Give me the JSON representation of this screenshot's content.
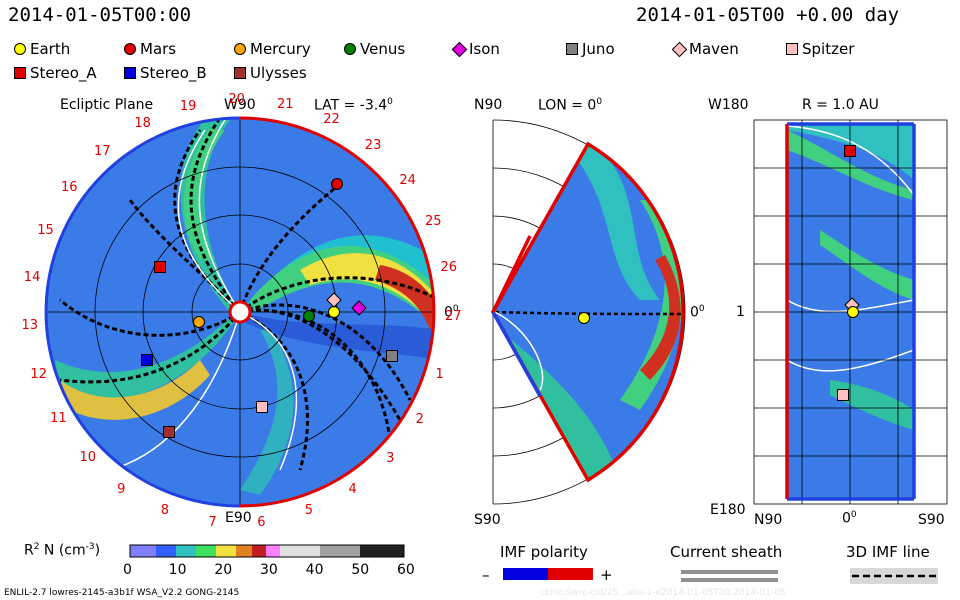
{
  "header": {
    "left_time": "2014-01-05T00:00",
    "right_time": "2014-01-05T00 +0.00 day"
  },
  "legend": [
    {
      "name": "Earth",
      "color": "#ffff00",
      "shape": "circle"
    },
    {
      "name": "Mars",
      "color": "#e00000",
      "shape": "circle"
    },
    {
      "name": "Mercury",
      "color": "#ffa500",
      "shape": "circle"
    },
    {
      "name": "Venus",
      "color": "#008000",
      "shape": "circle"
    },
    {
      "name": "Ison",
      "color": "#e000e0",
      "shape": "diamond"
    },
    {
      "name": "Juno",
      "color": "#808080",
      "shape": "square"
    },
    {
      "name": "Maven",
      "color": "#ffc0c0",
      "shape": "diamond"
    },
    {
      "name": "Spitzer",
      "color": "#ffc0c0",
      "shape": "square"
    },
    {
      "name": "Stereo_A",
      "color": "#e00000",
      "shape": "square"
    },
    {
      "name": "Stereo_B",
      "color": "#0000e0",
      "shape": "square"
    },
    {
      "name": "Ulysses",
      "color": "#a03030",
      "shape": "square"
    }
  ],
  "panel1": {
    "title": "Ecliptic Plane",
    "w90": "W90",
    "lat": "LAT = -3.4",
    "lat_deg": "0",
    "zero": "0",
    "zero_deg": "0",
    "e90": "E90",
    "carrington": [
      "1",
      "2",
      "3",
      "4",
      "5",
      "6",
      "7",
      "8",
      "9",
      "10",
      "11",
      "12",
      "13",
      "14",
      "15",
      "16",
      "17",
      "18",
      "19",
      "20",
      "21",
      "22",
      "23",
      "24",
      "25",
      "26",
      "27"
    ]
  },
  "panel2": {
    "n90": "N90",
    "lon": "LON = 0",
    "lon_deg": "0",
    "zero": "0",
    "zero_deg": "0",
    "s90": "S90"
  },
  "panel3": {
    "w180": "W180",
    "r": "R = 1.0 AU",
    "one": "1",
    "e180": "E180",
    "n90": "N90",
    "zero": "0",
    "zero_deg": "0",
    "s90": "S90"
  },
  "colorbar": {
    "label": "R",
    "label_exp": "2",
    "label_rest": " N (cm",
    "label_unit_exp": "-3",
    "label_close": ")",
    "ticks": [
      "0",
      "10",
      "20",
      "30",
      "40",
      "50",
      "60"
    ]
  },
  "imf": {
    "title": "IMF polarity",
    "minus": "–",
    "plus": "+",
    "colors": [
      "#0000e0",
      "#e00000"
    ]
  },
  "sheath": {
    "title": "Current sheath"
  },
  "imfline": {
    "title": "3D IMF line"
  },
  "footer": {
    "left": "ENLIL-2.7 lowres-2145-a3b1f WSA_V2.2 GONG-2145",
    "right": "ccmc/swrc-cld/25...abe-1-e2014-01-05T00  2014-01-05"
  }
}
